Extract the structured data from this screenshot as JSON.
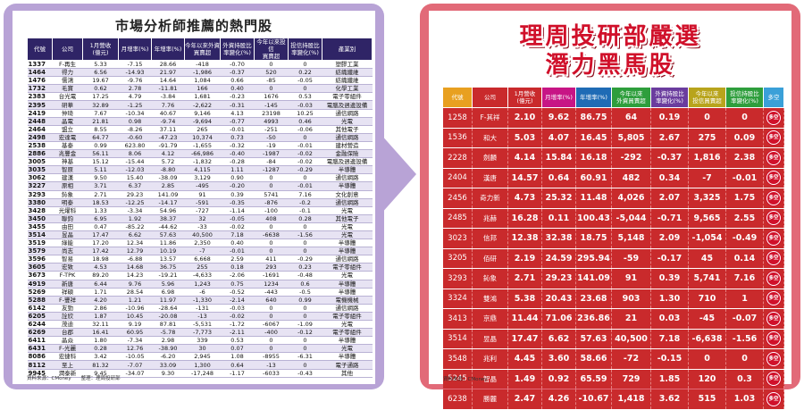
{
  "left": {
    "title": "市場分析師推薦的熱門股",
    "headers": [
      "代號",
      "公司",
      "1月營收\n(億元)",
      "月增率(%)",
      "年增率(%)",
      "今年以來外資\n買賣超",
      "外資持股比\n率變化(%)",
      "今年以來投信\n買賣超",
      "投信持股比\n率變化(%)",
      "產業別"
    ],
    "rows": [
      [
        "1337",
        "F-再生",
        "5.33",
        "-7.15",
        "28.66",
        "-418",
        "-0.70",
        "0",
        "0",
        "塑膠工業"
      ],
      [
        "1464",
        "得力",
        "6.56",
        "-14.93",
        "21.97",
        "-1,986",
        "-0.37",
        "520",
        "0.22",
        "紡織纖維"
      ],
      [
        "1476",
        "儒鴻",
        "19.67",
        "-9.76",
        "14.64",
        "1,084",
        "0.66",
        "-85",
        "-0.05",
        "紡織纖維"
      ],
      [
        "1732",
        "毛寶",
        "0.62",
        "2.78",
        "-11.81",
        "166",
        "0.40",
        "0",
        "0",
        "化學工業"
      ],
      [
        "2383",
        "台光電",
        "17.25",
        "4.79",
        "-3.84",
        "1,681",
        "-0.23",
        "1676",
        "0.53",
        "電子零組件"
      ],
      [
        "2395",
        "研華",
        "32.89",
        "-1.25",
        "7.76",
        "-2,622",
        "-0.31",
        "-145",
        "-0.03",
        "電腦及週邊設備"
      ],
      [
        "2419",
        "仲琦",
        "7.67",
        "-10.34",
        "40.67",
        "9,146",
        "4.13",
        "23198",
        "10.25",
        "通信網路"
      ],
      [
        "2448",
        "晶電",
        "21.81",
        "0.98",
        "-9.74",
        "-9,694",
        "-0.77",
        "4993",
        "0.46",
        "光電"
      ],
      [
        "2464",
        "盟立",
        "8.55",
        "-8.26",
        "37.11",
        "265",
        "-0.01",
        "-251",
        "-0.06",
        "其他電子"
      ],
      [
        "2498",
        "宏達電",
        "64.77",
        "-0.60",
        "-47.23",
        "10,374",
        "0.73",
        "-50",
        "0",
        "通信網路"
      ],
      [
        "2538",
        "基泰",
        "0.99",
        "623.80",
        "-91.79",
        "-1,655",
        "-0.32",
        "-19",
        "-0.01",
        "建材營造"
      ],
      [
        "2886",
        "兆豐金",
        "56.11",
        "8.06",
        "4.12",
        "-66,986",
        "-0.40",
        "-1987",
        "-0.02",
        "金融保險"
      ],
      [
        "3005",
        "神基",
        "15.12",
        "-15.44",
        "5.72",
        "-1,832",
        "-0.28",
        "-84",
        "-0.02",
        "電腦及週邊設備"
      ],
      [
        "3035",
        "智原",
        "5.11",
        "-12.03",
        "-8.80",
        "4,115",
        "1.11",
        "-1287",
        "-0.29",
        "半導體"
      ],
      [
        "3062",
        "建漢",
        "9.50",
        "15.40",
        "-38.09",
        "3,129",
        "0.90",
        "0",
        "0",
        "通信網路"
      ],
      [
        "3227",
        "原相",
        "3.71",
        "6.37",
        "2.85",
        "-495",
        "-0.20",
        "0",
        "-0.01",
        "半導體"
      ],
      [
        "3293",
        "鈊象",
        "2.71",
        "29.23",
        "141.09",
        "91",
        "0.39",
        "5741",
        "7.16",
        "文化創意"
      ],
      [
        "3380",
        "明泰",
        "18.53",
        "-12.25",
        "-14.17",
        "-591",
        "-0.35",
        "-876",
        "-0.2",
        "通信網路"
      ],
      [
        "3428",
        "光燿科",
        "1.33",
        "-3.34",
        "54.96",
        "-727",
        "-1.14",
        "-100",
        "-0.1",
        "光電"
      ],
      [
        "3450",
        "聯鈞",
        "6.95",
        "1.92",
        "38.37",
        "32",
        "-0.05",
        "408",
        "0.28",
        "其他電子"
      ],
      [
        "3455",
        "由田",
        "0.47",
        "-85.22",
        "-44.62",
        "-33",
        "-0.02",
        "0",
        "0",
        "光電"
      ],
      [
        "3514",
        "昱晶",
        "17.47",
        "6.62",
        "57.63",
        "40,500",
        "7.18",
        "-6638",
        "-1.56",
        "光電"
      ],
      [
        "3519",
        "綠能",
        "17.20",
        "12.34",
        "11.86",
        "2,350",
        "0.40",
        "0",
        "0",
        "半導體"
      ],
      [
        "3579",
        "尚志",
        "17.42",
        "12.79",
        "10.19",
        "-7",
        "-0.01",
        "0",
        "0",
        "半導體"
      ],
      [
        "3596",
        "智易",
        "18.98",
        "-6.88",
        "13.57",
        "6,668",
        "2.59",
        "411",
        "-0.29",
        "通信網路"
      ],
      [
        "3605",
        "宏致",
        "4.53",
        "14.68",
        "36.75",
        "255",
        "0.18",
        "293",
        "0.23",
        "電子零組件"
      ],
      [
        "3673",
        "F-TPK",
        "89.20",
        "14.23",
        "-19.21",
        "-4,633",
        "-2.06",
        "-1691",
        "-0.48",
        "光電"
      ],
      [
        "4919",
        "新唐",
        "6.44",
        "9.76",
        "5.96",
        "1,243",
        "0.75",
        "1234",
        "0.6",
        "半導體"
      ],
      [
        "5269",
        "祥碩",
        "1.71",
        "28.54",
        "6.98",
        "-6",
        "-0.52",
        "-443",
        "-0.5",
        "半導體"
      ],
      [
        "5288",
        "F-豐祥",
        "4.20",
        "1.21",
        "11.97",
        "-1,330",
        "-2.14",
        "640",
        "0.99",
        "電機機械"
      ],
      [
        "6142",
        "友勁",
        "2.86",
        "-10.96",
        "-28.64",
        "-131",
        "-0.03",
        "0",
        "0",
        "通信網路"
      ],
      [
        "6205",
        "詮欣",
        "1.87",
        "10.45",
        "-20.08",
        "-13",
        "-0.02",
        "0",
        "0",
        "電子零組件"
      ],
      [
        "6244",
        "茂迪",
        "32.11",
        "9.19",
        "87.81",
        "-5,531",
        "-1.72",
        "-6067",
        "-1.09",
        "光電"
      ],
      [
        "6269",
        "台郡",
        "16.41",
        "60.95",
        "-5.78",
        "-7,773",
        "-2.11",
        "-400",
        "-0.12",
        "電子零組件"
      ],
      [
        "6411",
        "晶焱",
        "1.80",
        "-7.34",
        "2.98",
        "339",
        "0.53",
        "0",
        "0",
        "半導體"
      ],
      [
        "6431",
        "F-光麗",
        "0.28",
        "12.76",
        "-38.90",
        "30",
        "0.07",
        "0",
        "0",
        "光電"
      ],
      [
        "8086",
        "宏捷科",
        "3.42",
        "-10.05",
        "-6.20",
        "2,945",
        "1.08",
        "-8955",
        "-6.31",
        "半導體"
      ],
      [
        "8112",
        "至上",
        "81.32",
        "-7.07",
        "33.09",
        "1,300",
        "0.64",
        "-13",
        "0",
        "電子通路"
      ],
      [
        "9945",
        "潤泰新",
        "9.45",
        "-34.07",
        "9.30",
        "-17,248",
        "-1.17",
        "-6033",
        "-0.43",
        "其他"
      ]
    ],
    "source": "資料來源：CMoney　　整理：理周投研部"
  },
  "right": {
    "title_line1": "理周投研部嚴選",
    "title_line2": "潛力黑馬股",
    "headers": [
      "代號",
      "公司",
      "1月營收\n(億元)",
      "月增率(%)",
      "年增率(%)",
      "今年以來\n外資買賣超",
      "外資持股比\n率變化(%)",
      "今年以來\n投信買賣超",
      "投信持股比\n率變化(%)",
      "多空"
    ],
    "header_colors": [
      "#e8a020",
      "#c92a2c",
      "#c92a2c",
      "#c71585",
      "#1f6bb5",
      "#2e9e3c",
      "#6a3c9e",
      "#b8a41c",
      "#2e9e3c",
      "#3aa0d8"
    ],
    "rows": [
      [
        "1258",
        "F-其祥",
        "2.10",
        "9.62",
        "86.75",
        "64",
        "0.19",
        "0",
        "0"
      ],
      [
        "1536",
        "和大",
        "5.03",
        "4.07",
        "16.45",
        "5,805",
        "2.67",
        "275",
        "0.09"
      ],
      [
        "2228",
        "劍麟",
        "4.14",
        "15.84",
        "16.18",
        "-292",
        "-0.37",
        "1,816",
        "2.38"
      ],
      [
        "2404",
        "漢唐",
        "14.57",
        "0.64",
        "60.91",
        "482",
        "0.34",
        "-7",
        "-0.01"
      ],
      [
        "2456",
        "奇力新",
        "4.73",
        "25.32",
        "11.48",
        "4,026",
        "2.07",
        "3,325",
        "1.75"
      ],
      [
        "2485",
        "兆赫",
        "16.28",
        "0.11",
        "100.43",
        "-5,044",
        "-0.71",
        "9,565",
        "2.55"
      ],
      [
        "3023",
        "信邦",
        "12.38",
        "32.38",
        "18.75",
        "5,148",
        "2.09",
        "-1,054",
        "-0.49"
      ],
      [
        "3205",
        "佰研",
        "2.19",
        "24.59",
        "295.94",
        "-59",
        "-0.17",
        "45",
        "0.14"
      ],
      [
        "3293",
        "鈊象",
        "2.71",
        "29.23",
        "141.09",
        "91",
        "0.39",
        "5,741",
        "7.16"
      ],
      [
        "3324",
        "雙鴻",
        "5.38",
        "20.43",
        "23.68",
        "903",
        "1.30",
        "710",
        "1"
      ],
      [
        "3413",
        "京鼎",
        "11.44",
        "71.06",
        "236.86",
        "21",
        "0.03",
        "-45",
        "-0.07"
      ],
      [
        "3514",
        "昱晶",
        "17.47",
        "6.62",
        "57.63",
        "40,500",
        "7.18",
        "-6,638",
        "-1.56"
      ],
      [
        "3548",
        "兆利",
        "4.45",
        "3.60",
        "58.66",
        "-72",
        "-0.15",
        "0",
        "0"
      ],
      [
        "5245",
        "智晶",
        "1.49",
        "0.92",
        "65.59",
        "729",
        "1.85",
        "120",
        "0.3"
      ],
      [
        "6238",
        "勝麗",
        "2.47",
        "4.26",
        "-10.67",
        "1,418",
        "3.62",
        "515",
        "1.03"
      ]
    ],
    "badge": "多空",
    "source": "資料來源：CMoney"
  }
}
